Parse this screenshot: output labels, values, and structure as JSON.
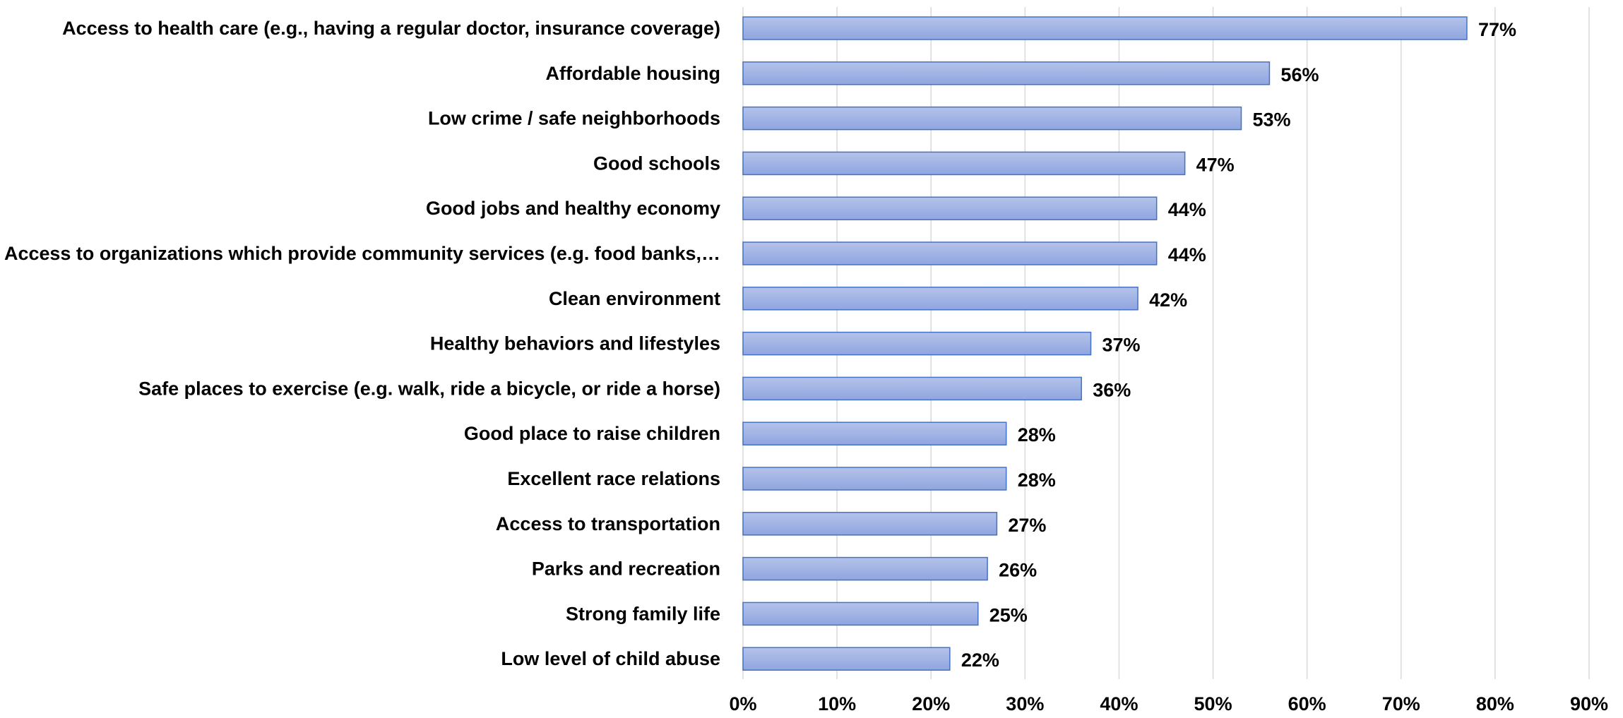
{
  "chart_data": {
    "type": "bar",
    "orientation": "horizontal",
    "categories": [
      "Access to health care (e.g., having a regular doctor, insurance coverage)",
      "Affordable housing",
      "Low crime / safe neighborhoods",
      "Good schools",
      "Good jobs and healthy economy",
      "Access to organizations which provide community services (e.g. food banks,…",
      "Clean environment",
      "Healthy behaviors and lifestyles",
      "Safe places to exercise (e.g. walk, ride a bicycle, or ride a horse)",
      "Good place to raise children",
      "Excellent race relations",
      "Access to transportation",
      "Parks and recreation",
      "Strong family life",
      "Low level of child abuse"
    ],
    "values": [
      77,
      56,
      53,
      47,
      44,
      44,
      42,
      37,
      36,
      28,
      28,
      27,
      26,
      25,
      22
    ],
    "data_labels": [
      "77%",
      "56%",
      "53%",
      "47%",
      "44%",
      "44%",
      "42%",
      "37%",
      "36%",
      "28%",
      "28%",
      "27%",
      "26%",
      "25%",
      "22%"
    ],
    "x_ticks": [
      0,
      10,
      20,
      30,
      40,
      50,
      60,
      70,
      80,
      90
    ],
    "x_tick_labels": [
      "0%",
      "10%",
      "20%",
      "30%",
      "40%",
      "50%",
      "60%",
      "70%",
      "80%",
      "90%"
    ],
    "xlim": [
      0,
      90
    ],
    "title": "",
    "xlabel": "",
    "ylabel": "",
    "grid": true,
    "legend": false,
    "colors": {
      "bar_fill_top": "#B4C3EA",
      "bar_fill_bottom": "#90A5E0",
      "bar_stroke": "#4472C4",
      "grid": "#D9D9D9",
      "text": "#000000"
    }
  }
}
